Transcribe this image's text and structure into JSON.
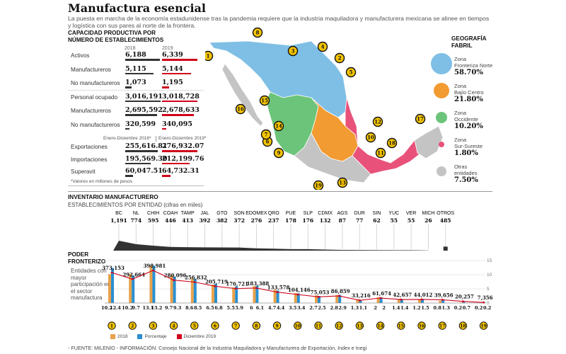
{
  "header": {
    "title": "Manufactura esencial",
    "subtitle": "La puesta en marcha de la economía estadunidense tras la pandemia requiere que la industria maquiladora y manufacturera mexicana se alinee en tiempos y logística con sus pares al norte de la frontera."
  },
  "capacity": {
    "heading_line1": "CAPACIDAD PRODUCTIVA POR",
    "heading_line2": "NÚMERO DE ESTABLECIMIENTOS",
    "year_a": "2018",
    "year_b": "2019",
    "color_a": "#333333",
    "color_b": "#d0021b",
    "rows": [
      {
        "label": "Activos",
        "a": "6,188",
        "b": "6,339",
        "fa": 0.98,
        "fb": 1.0
      },
      {
        "label": "Manufactureros",
        "a": "5,115",
        "b": "5,144",
        "fa": 0.8,
        "fb": 0.81
      },
      {
        "label": "No manufactureros",
        "a": "1,073",
        "b": "1,195",
        "fa": 0.17,
        "fb": 0.19
      },
      {
        "label": "Personal ocupado",
        "a": "3,016,191",
        "b": "3,018,728",
        "fa": 1.0,
        "fb": 1.0
      },
      {
        "label": "Manufactureros",
        "a": "2,695,592",
        "b": "2,678,633",
        "fa": 0.89,
        "fb": 0.89
      },
      {
        "label": "No manufactureros",
        "a": "320,599",
        "b": "340,095",
        "fa": 0.11,
        "fb": 0.11
      }
    ],
    "period_a": "Enero-Diciembre 2018*",
    "period_b": "Enero-Diciembre 2019*",
    "money_rows": [
      {
        "label": "Exportaciones",
        "a": "255,616.81",
        "b": "276,932.07",
        "fa": 0.92,
        "fb": 1.0
      },
      {
        "label": "Importaciones",
        "a": "195,569.30",
        "b": "212,199.76",
        "fa": 0.71,
        "fb": 0.77
      },
      {
        "label": "Superavit",
        "a": "60,047.51",
        "b": "64,732.31",
        "fa": 0.22,
        "fb": 0.23
      }
    ],
    "note": "*Valores en millones de pesos"
  },
  "geo": {
    "heading": "GEOGRAFÍA FABRIL",
    "zones": [
      {
        "label_1": "Zona",
        "label_2": "Fronteriza Norte",
        "pct": "58.70%",
        "color": "#7fbfe6"
      },
      {
        "label_1": "Zona",
        "label_2": "Bajío Centro",
        "pct": "21.80%",
        "color": "#f29b32"
      },
      {
        "label_1": "Zona",
        "label_2": "Occidente",
        "pct": "10.20%",
        "color": "#6cc47a"
      },
      {
        "label_1": "Zona",
        "label_2": "Sur-Sureste",
        "pct": "1.80%",
        "color": "#e8527a"
      },
      {
        "label_1": "Otras",
        "label_2": "entidades",
        "pct": "7.50%",
        "color": "#c4c4c4"
      }
    ],
    "map_markers": [
      "1",
      "2",
      "3",
      "4",
      "5",
      "6",
      "7",
      "8",
      "9",
      "10",
      "11",
      "12",
      "13",
      "14",
      "15",
      "16",
      "17",
      "18",
      "19"
    ]
  },
  "inventory": {
    "heading": "INVENTARIO MANUFACTURERO",
    "subheading": "ESTABLECIMIENTOS POR ENTIDAD (cifras en miles)"
  },
  "frontier": {
    "heading_line1": "PODER",
    "heading_line2": "FRONTERIZO",
    "desc": "Entidades con mayor participación en el sector manufactura"
  },
  "chart_data": [
    {
      "type": "bar",
      "title": "INVENTARIO MANUFACTURERO",
      "subtitle": "ESTABLECIMIENTOS POR ENTIDAD (cifras en miles)",
      "categories": [
        "BC",
        "NL",
        "CHIH",
        "COAH",
        "TAMP",
        "JAL",
        "GTO",
        "SON",
        "EDOMEX",
        "QRO",
        "PUE",
        "SLP",
        "CDMX",
        "AGS",
        "DUR",
        "SIN",
        "YUC",
        "VER",
        "MICH",
        "OTROS"
      ],
      "values": [
        1191,
        774,
        595,
        446,
        413,
        392,
        382,
        372,
        276,
        237,
        178,
        176,
        132,
        87,
        77,
        62,
        55,
        55,
        26,
        485
      ],
      "value_labels": [
        "1,191",
        "774",
        "595",
        "446",
        "413",
        "392",
        "382",
        "372",
        "276",
        "237",
        "178",
        "176",
        "132",
        "87",
        "77",
        "62",
        "55",
        "55",
        "26",
        "485"
      ]
    },
    {
      "type": "bar",
      "title": "PODER FRONTERIZO",
      "categories": [
        "1",
        "2",
        "3",
        "4",
        "5",
        "6",
        "7",
        "8",
        "9",
        "10",
        "11",
        "12",
        "13",
        "14",
        "15",
        "16",
        "17",
        "18",
        "19"
      ],
      "series": [
        {
          "name": "2018",
          "color": "#e8a24a",
          "values": [
            10.2,
            10.2,
            13.1,
            9.7,
            8.6,
            6.5,
            5.5,
            6,
            4.7,
            3.5,
            2.7,
            2.8,
            1.3,
            2,
            1.4,
            1.2,
            0.8,
            0.2,
            0.2
          ]
        },
        {
          "name": "Porcentaje",
          "color": "#2a8fd0",
          "values": [
            12.4,
            9.7,
            13.2,
            9.3,
            8.5,
            6.8,
            5.9,
            6.1,
            4.4,
            3.4,
            2.5,
            2.9,
            1.1,
            2,
            1.4,
            1.5,
            1.3,
            0.7,
            0.2
          ]
        },
        {
          "name": "Diciembre 2019",
          "color": "#d0021b",
          "values": [
            373153,
            292664,
            398981,
            280096,
            256832,
            205719,
            176721,
            183388,
            133578,
            104146,
            75053,
            86859,
            33216,
            61674,
            42657,
            44012,
            39656,
            20257,
            7356
          ],
          "value_labels": [
            "373,153",
            "292,664",
            "398,981",
            "280,096",
            "256,832",
            "205,719",
            "176,721",
            "183,388",
            "133,578",
            "104,146",
            "75,053",
            "86,859",
            "33,216",
            "61,674",
            "42,657",
            "44,012",
            "39,656",
            "20,257",
            "7,356"
          ]
        }
      ],
      "label_top_2018": [
        "10.2",
        "10.2",
        "13.1",
        "9.7",
        "8.6",
        "6.5",
        "5.5",
        "6",
        "4.7",
        "3.5",
        "2.7",
        "2.8",
        "1.3",
        "2",
        "1.4",
        "1.2",
        "0.8",
        "0.2",
        "0.2"
      ],
      "label_top_pct": [
        "12.4",
        "9.7",
        "13.2",
        "9.3",
        "8.5",
        "6.8",
        "5.9",
        "6.1",
        "4.4",
        "3.4",
        "2.5",
        "2.9",
        "1.1",
        "2",
        "1.4",
        "1.5",
        "1.3",
        "0.7",
        "0.2"
      ],
      "y_ticks": [
        "0",
        "5",
        "10",
        "15"
      ],
      "ylim": [
        0,
        15
      ]
    }
  ],
  "footer": {
    "source": "- FUENTE: MILENIO - INFORMACIÓN: Consejo Nacional de la Industria Maquiladora y Manufacturera de Exportación, Index e Inegi"
  }
}
